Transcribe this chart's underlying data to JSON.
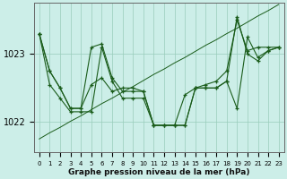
{
  "xlabel": "Graphe pression niveau de la mer (hPa)",
  "background_color": "#cceee8",
  "grid_color": "#99ccbb",
  "line_color": "#1a5c1a",
  "ylim": [
    1021.55,
    1023.75
  ],
  "yticks": [
    1022,
    1023
  ],
  "xlim": [
    -0.5,
    23.5
  ],
  "series": [
    [
      1023.3,
      1022.75,
      1022.5,
      1022.2,
      1022.2,
      1022.55,
      1022.65,
      1022.45,
      1022.5,
      1022.5,
      1022.45,
      1021.95,
      1021.95,
      1021.95,
      1022.4,
      1022.5,
      1022.55,
      1022.6,
      1022.75,
      1023.5,
      1023.05,
      1023.1,
      1023.1,
      1023.1
    ],
    [
      1023.3,
      1022.75,
      1022.5,
      1022.2,
      1022.2,
      1023.1,
      1023.15,
      1022.65,
      1022.45,
      1022.45,
      1022.45,
      1021.95,
      1021.95,
      1021.95,
      1021.95,
      1022.5,
      1022.5,
      1022.5,
      1022.6,
      1022.2,
      1023.25,
      1022.95,
      1023.05,
      1023.1
    ],
    [
      1023.3,
      1022.55,
      1022.35,
      1022.15,
      1022.15,
      1022.15,
      1023.1,
      1022.6,
      1022.35,
      1022.35,
      1022.35,
      1021.95,
      1021.95,
      1021.95,
      1021.95,
      1022.5,
      1022.5,
      1022.5,
      1022.6,
      1023.55,
      1023.0,
      1022.9,
      1023.05,
      1023.1
    ]
  ],
  "linear_series": [
    1021.75,
    1021.84,
    1021.92,
    1022.01,
    1022.09,
    1022.18,
    1022.27,
    1022.35,
    1022.44,
    1022.52,
    1022.61,
    1022.7,
    1022.78,
    1022.87,
    1022.95,
    1023.04,
    1023.13,
    1023.21,
    1023.3,
    1023.38,
    1023.47,
    1023.56,
    1023.64,
    1023.73
  ]
}
